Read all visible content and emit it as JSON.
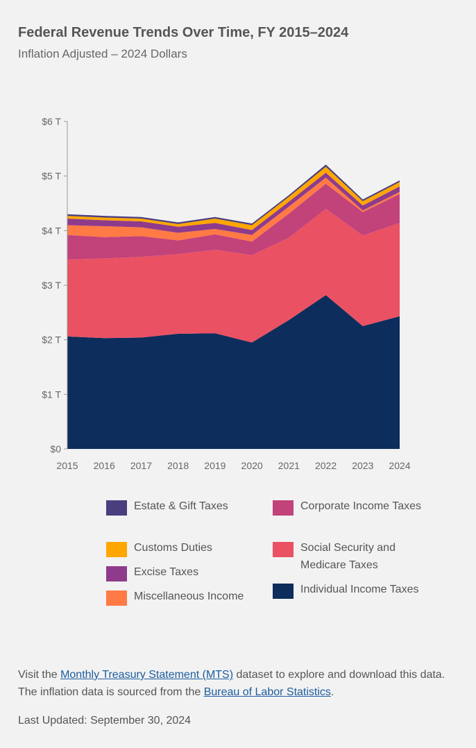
{
  "header": {
    "title": "Federal Revenue Trends Over Time, FY 2015–2024",
    "subtitle": "Inflation Adjusted – 2024 Dollars"
  },
  "footer": {
    "text_1": "Visit the ",
    "link_mts": "Monthly Treasury Statement (MTS)",
    "text_2": " dataset to explore and download this data. The inflation data is sourced from the ",
    "link_bls": "Bureau of Labor Statistics",
    "text_3": ".",
    "last_updated": "Last Updated: September 30, 2024"
  },
  "chart_data": {
    "type": "area",
    "stacked": true,
    "title": "Federal Revenue Trends Over Time, FY 2015–2024",
    "subtitle": "Inflation Adjusted – 2024 Dollars",
    "x": [
      "2015",
      "2016",
      "2017",
      "2018",
      "2019",
      "2020",
      "2021",
      "2022",
      "2023",
      "2024"
    ],
    "y_ticks": [
      "$0",
      "$1 T",
      "$2 T",
      "$3 T",
      "$4 T",
      "$5 T",
      "$6 T"
    ],
    "ylim": [
      0,
      6
    ],
    "y_unit": "trillions of 2024 dollars",
    "grid": false,
    "legend_position": "bottom",
    "series": [
      {
        "name": "Individual Income Taxes",
        "color": "#0d2d5c",
        "values": [
          2.06,
          2.03,
          2.04,
          2.11,
          2.12,
          1.95,
          2.36,
          2.82,
          2.25,
          2.43
        ]
      },
      {
        "name": "Social Security and Medicare Taxes",
        "color": "#ea5163",
        "values": [
          1.41,
          1.46,
          1.48,
          1.46,
          1.53,
          1.6,
          1.51,
          1.58,
          1.66,
          1.71
        ]
      },
      {
        "name": "Corporate Income Taxes",
        "color": "#c2427a",
        "values": [
          0.45,
          0.39,
          0.38,
          0.25,
          0.28,
          0.25,
          0.44,
          0.46,
          0.43,
          0.53
        ]
      },
      {
        "name": "Miscellaneous Income",
        "color": "#ff7a45",
        "values": [
          0.18,
          0.2,
          0.16,
          0.14,
          0.1,
          0.12,
          0.13,
          0.11,
          0.03,
          0.04
        ]
      },
      {
        "name": "Excise Taxes",
        "color": "#8f3b8c",
        "values": [
          0.12,
          0.11,
          0.11,
          0.11,
          0.11,
          0.09,
          0.09,
          0.09,
          0.09,
          0.1
        ]
      },
      {
        "name": "Customs Duties",
        "color": "#ffa600",
        "values": [
          0.05,
          0.05,
          0.05,
          0.05,
          0.08,
          0.09,
          0.09,
          0.11,
          0.08,
          0.08
        ]
      },
      {
        "name": "Estate & Gift Taxes",
        "color": "#4a3e7e",
        "values": [
          0.03,
          0.03,
          0.03,
          0.03,
          0.03,
          0.03,
          0.03,
          0.04,
          0.03,
          0.03
        ]
      }
    ],
    "legend_order": [
      "Estate & Gift Taxes",
      "Corporate Income Taxes",
      "Customs Duties",
      "Social Security and Medicare Taxes",
      "Excise Taxes",
      "Individual Income Taxes",
      "Miscellaneous Income"
    ]
  }
}
